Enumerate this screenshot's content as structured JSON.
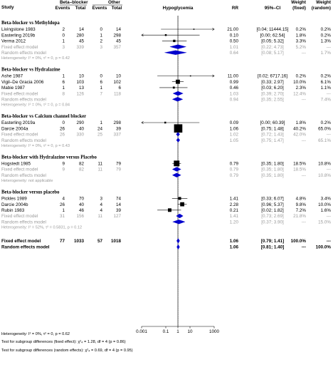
{
  "header": {
    "study": "Study",
    "group1": "Beta–blocker",
    "group2": "Other",
    "events": "Events",
    "total": "Total",
    "plot_title": "Hypoglycemia",
    "rr": "RR",
    "ci": "95%–CI",
    "weight": "Weight",
    "fixed": "(fixed)",
    "random": "(random)"
  },
  "chart_data": {
    "type": "forest",
    "xlabel": "",
    "x_scale": "log",
    "xlim": [
      0.001,
      1000
    ],
    "x_ticks": [
      "0.001",
      "0.1",
      "1",
      "10",
      "1000"
    ],
    "x_tick_values": [
      0.001,
      0.1,
      1,
      10,
      1000
    ],
    "colors": {
      "diamond": "#0000cc",
      "square": "#000000",
      "grey_text": "#9a9a9a"
    },
    "rows": [
      {
        "kind": "group",
        "label": "Beta-blocker vs Methyldopa"
      },
      {
        "kind": "study",
        "label": "Livingstone 1983",
        "e1": "2",
        "n1": "14",
        "e2": "0",
        "n2": "14",
        "rr": 21.0,
        "lo": 0.04,
        "hi": 11444.15,
        "rr_t": "21.00",
        "ci_t": "[0.04; 11444.15]",
        "wf": "0.2%",
        "wr": "0.2%",
        "w": 0.2
      },
      {
        "kind": "study",
        "label": "Easterling 2019b",
        "e1": "0",
        "n1": "280",
        "e2": "1",
        "n2": "298",
        "rr": 0.1,
        "lo": 0.0,
        "hi": 62.54,
        "rr_t": "0.10",
        "ci_t": "[0.00; 62.54]",
        "wf": "1.8%",
        "wr": "0.2%",
        "w": 1.8
      },
      {
        "kind": "study",
        "label": "Verma 2012",
        "e1": "1",
        "n1": "45",
        "e2": "2",
        "n2": "45",
        "rr": 0.5,
        "lo": 0.05,
        "hi": 5.32,
        "rr_t": "0.50",
        "ci_t": "[0.05; 5.32]",
        "wf": "3.3%",
        "wr": "1.3%",
        "w": 3.3
      },
      {
        "kind": "fixed",
        "label": "Fixed effect model",
        "e1": "3",
        "n1": "339",
        "e2": "3",
        "n2": "357",
        "rr": 1.01,
        "lo": 0.22,
        "hi": 4.73,
        "rr_t": "1.01",
        "ci_t": "[0.22; 4.73]",
        "wf": "5.2%",
        "wr": "---"
      },
      {
        "kind": "random",
        "label": "Random effects model",
        "rr": 0.64,
        "lo": 0.08,
        "hi": 5.17,
        "rr_t": "0.64",
        "ci_t": "[0.08; 5.17]",
        "wf": "---",
        "wr": "1.7%"
      },
      {
        "kind": "het",
        "label": "Heterogeneity: I² = 0%, τ² = 0, p = 0.42"
      },
      {
        "kind": "group",
        "label": "Beta-blocker vs Hydralazine"
      },
      {
        "kind": "study",
        "label": "Ashe 1987",
        "e1": "1",
        "n1": "10",
        "e2": "0",
        "n2": "10",
        "rr": 11.0,
        "lo": 0.02,
        "hi": 6717.16,
        "rr_t": "11.00",
        "ci_t": "[0.02; 6717.16]",
        "wf": "0.2%",
        "wr": "0.2%",
        "w": 0.2
      },
      {
        "kind": "study",
        "label": "Vigil–De Gracia 2006",
        "e1": "6",
        "n1": "103",
        "e2": "6",
        "n2": "102",
        "rr": 0.99,
        "lo": 0.33,
        "hi": 2.97,
        "rr_t": "0.99",
        "ci_t": "[0.33; 2.97]",
        "wf": "10.0%",
        "wr": "6.1%",
        "w": 10.0
      },
      {
        "kind": "study",
        "label": "Mabie 1987",
        "e1": "1",
        "n1": "13",
        "e2": "1",
        "n2": "6",
        "rr": 0.46,
        "lo": 0.03,
        "hi": 6.2,
        "rr_t": "0.46",
        "ci_t": "[0.03; 6.20]",
        "wf": "2.3%",
        "wr": "1.1%",
        "w": 2.3
      },
      {
        "kind": "fixed",
        "label": "Fixed effect model",
        "e1": "8",
        "n1": "126",
        "e2": "7",
        "n2": "118",
        "rr": 1.03,
        "lo": 0.39,
        "hi": 2.7,
        "rr_t": "1.03",
        "ci_t": "[0.39; 2.70]",
        "wf": "12.4%",
        "wr": "---"
      },
      {
        "kind": "random",
        "label": "Random effects model",
        "rr": 0.94,
        "lo": 0.35,
        "hi": 2.55,
        "rr_t": "0.94",
        "ci_t": "[0.35; 2.55]",
        "wf": "---",
        "wr": "7.4%"
      },
      {
        "kind": "het",
        "label": "Heterogeneity: I² = 0%, τ² = 0, p = 0.84"
      },
      {
        "kind": "group",
        "label": "Beta-blocker vs Calcium channel blocker"
      },
      {
        "kind": "study",
        "label": "Easterling 2019a",
        "e1": "0",
        "n1": "290",
        "e2": "1",
        "n2": "298",
        "rr": 0.09,
        "lo": 0.0,
        "hi": 60.39,
        "rr_t": "0.09",
        "ci_t": "[0.00; 60.39]",
        "wf": "1.8%",
        "wr": "0.2%",
        "w": 1.8
      },
      {
        "kind": "study",
        "label": "Darcie 2004a",
        "e1": "26",
        "n1": "40",
        "e2": "24",
        "n2": "39",
        "rr": 1.06,
        "lo": 0.75,
        "hi": 1.48,
        "rr_t": "1.06",
        "ci_t": "[0.75; 1.48]",
        "wf": "40.2%",
        "wr": "65.0%",
        "w": 40.2
      },
      {
        "kind": "fixed",
        "label": "Fixed effect model",
        "e1": "26",
        "n1": "330",
        "e2": "25",
        "n2": "337",
        "rr": 1.02,
        "lo": 0.72,
        "hi": 1.43,
        "rr_t": "1.02",
        "ci_t": "[0.72; 1.43]",
        "wf": "42.0%",
        "wr": "---"
      },
      {
        "kind": "random",
        "label": "Random effects model",
        "rr": 1.05,
        "lo": 0.75,
        "hi": 1.47,
        "rr_t": "1.05",
        "ci_t": "[0.75; 1.47]",
        "wf": "---",
        "wr": "65.1%"
      },
      {
        "kind": "het",
        "label": "Heterogeneity: I² = 0%, τ² = 0, p = 0.43"
      },
      {
        "kind": "group",
        "label": "Beta-blocker with Hydralazine versus Placebo"
      },
      {
        "kind": "study",
        "label": "Hogstedt 1985",
        "e1": "9",
        "n1": "82",
        "e2": "11",
        "n2": "79",
        "rr": 0.79,
        "lo": 0.35,
        "hi": 1.8,
        "rr_t": "0.79",
        "ci_t": "[0.35; 1.80]",
        "wf": "18.5%",
        "wr": "10.8%",
        "w": 18.5
      },
      {
        "kind": "fixed",
        "label": "Fixed effect model",
        "e1": "9",
        "n1": "82",
        "e2": "11",
        "n2": "79",
        "rr": 0.79,
        "lo": 0.35,
        "hi": 1.8,
        "rr_t": "0.79",
        "ci_t": "[0.35; 1.80]",
        "wf": "18.5%",
        "wr": "---"
      },
      {
        "kind": "random",
        "label": "Random effects model",
        "rr": 0.79,
        "lo": 0.35,
        "hi": 1.8,
        "rr_t": "0.79",
        "ci_t": "[0.35; 1.80]",
        "wf": "---",
        "wr": "10.8%"
      },
      {
        "kind": "het",
        "label": "Heterogeneity: not applicable"
      },
      {
        "kind": "group",
        "label": "Beta-blocker versus placebo"
      },
      {
        "kind": "study",
        "label": "Pickles 1989",
        "e1": "4",
        "n1": "70",
        "e2": "3",
        "n2": "74",
        "rr": 1.41,
        "lo": 0.33,
        "hi": 6.07,
        "rr_t": "1.41",
        "ci_t": "[0.33; 6.07]",
        "wf": "4.8%",
        "wr": "3.4%",
        "w": 4.8
      },
      {
        "kind": "study",
        "label": "Darcie 2004b",
        "e1": "26",
        "n1": "40",
        "e2": "4",
        "n2": "14",
        "rr": 2.28,
        "lo": 0.96,
        "hi": 5.37,
        "rr_t": "2.28",
        "ci_t": "[0.96; 5.37]",
        "wf": "9.8%",
        "wr": "10.0%",
        "w": 9.8
      },
      {
        "kind": "study",
        "label": "Rubin 1983",
        "e1": "1",
        "n1": "46",
        "e2": "4",
        "n2": "39",
        "rr": 0.21,
        "lo": 0.02,
        "hi": 1.82,
        "rr_t": "0.21",
        "ci_t": "[0.02; 1.82]",
        "wf": "7.2%",
        "wr": "1.6%",
        "w": 7.2
      },
      {
        "kind": "fixed",
        "label": "Fixed effect model",
        "e1": "31",
        "n1": "156",
        "e2": "11",
        "n2": "127",
        "rr": 1.41,
        "lo": 0.73,
        "hi": 2.69,
        "rr_t": "1.41",
        "ci_t": "[0.73; 2.69]",
        "wf": "21.8%",
        "wr": "---"
      },
      {
        "kind": "random",
        "label": "Random effects model",
        "rr": 1.2,
        "lo": 0.37,
        "hi": 3.9,
        "rr_t": "1.20",
        "ci_t": "[0.37; 3.90]",
        "wf": "---",
        "wr": "15.0%"
      },
      {
        "kind": "het",
        "label": "Heterogeneity: I² = 52%, τ² = 0.5831, p = 0.12"
      },
      {
        "kind": "overall_fixed",
        "label": "Fixed effect model",
        "e1": "77",
        "n1": "1033",
        "e2": "57",
        "n2": "1018",
        "rr": 1.06,
        "lo": 0.79,
        "hi": 1.41,
        "rr_t": "1.06",
        "ci_t": "[0.79; 1.41]",
        "wf": "100.0%",
        "wr": "---"
      },
      {
        "kind": "overall_random",
        "label": "Random effects model",
        "rr": 1.06,
        "lo": 0.81,
        "hi": 1.4,
        "rr_t": "1.06",
        "ci_t": "[0.81; 1.40]",
        "wf": "---",
        "wr": "100.0%"
      }
    ],
    "footer": [
      "Heterogeneity: I² = 0%, τ² = 0, p = 0.62",
      "Test for subgroup differences (fixed effect): χ²₄ = 1.28, df = 4 (p = 0.86)",
      "Test for subgroup differences (random effects): χ²₄ = 0.69, df = 4 (p = 0.95)"
    ]
  }
}
